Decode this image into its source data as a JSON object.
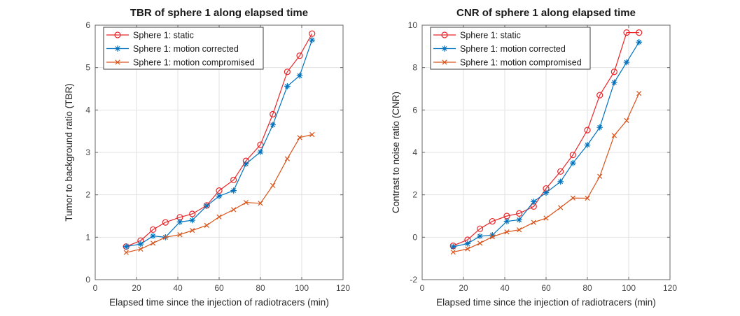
{
  "figure": {
    "background": "#ffffff",
    "axis_box_color": "#666666",
    "grid_color": "#e2e2e2",
    "tick_label_color": "#474747",
    "title_color": "#1a1a1a",
    "label_color": "#262626",
    "legend_border_color": "#3c3c3c",
    "legend_background": "#ffffff"
  },
  "chart_data": [
    {
      "id": "tbr",
      "type": "line",
      "title": "TBR of sphere 1 along elapsed time",
      "xlabel": "Elapsed time since the injection of radiotracers (min)",
      "ylabel": "Tumor to background ratio (TBR)",
      "xlim": [
        0,
        120
      ],
      "ylim": [
        0,
        6
      ],
      "xticks": [
        0,
        20,
        40,
        60,
        80,
        100,
        120
      ],
      "yticks": [
        0,
        1,
        2,
        3,
        4,
        5,
        6
      ],
      "grid": true,
      "legend_position": "top-left",
      "x": [
        15,
        22,
        28,
        34,
        41,
        47,
        54,
        60,
        67,
        73,
        80,
        86,
        93,
        99,
        105
      ],
      "series": [
        {
          "name": "Sphere 1: static",
          "color": "#e8262a",
          "marker": "circle",
          "values": [
            0.78,
            0.92,
            1.18,
            1.35,
            1.47,
            1.55,
            1.75,
            2.1,
            2.35,
            2.8,
            3.18,
            3.9,
            4.9,
            5.28,
            5.8
          ]
        },
        {
          "name": "Sphere 1: motion corrected",
          "color": "#0072bd",
          "marker": "asterisk",
          "values": [
            0.78,
            0.84,
            1.03,
            1.0,
            1.36,
            1.4,
            1.74,
            1.97,
            2.1,
            2.73,
            3.01,
            3.65,
            4.56,
            4.81,
            5.65
          ]
        },
        {
          "name": "Sphere 1: motion compromised",
          "color": "#d95319",
          "marker": "x",
          "values": [
            0.64,
            0.72,
            0.86,
            1.0,
            1.06,
            1.16,
            1.28,
            1.48,
            1.65,
            1.82,
            1.8,
            2.22,
            2.85,
            3.35,
            3.42
          ]
        }
      ]
    },
    {
      "id": "cnr",
      "type": "line",
      "title": "CNR of sphere 1 along elapsed time",
      "xlabel": "Elapsed time since the injection of radiotracers (min)",
      "ylabel": "Contrast to noise ratio (CNR)",
      "xlim": [
        0,
        120
      ],
      "ylim": [
        -2,
        10
      ],
      "xticks": [
        0,
        20,
        40,
        60,
        80,
        100,
        120
      ],
      "yticks": [
        -2,
        0,
        2,
        4,
        6,
        8,
        10
      ],
      "grid": true,
      "legend_position": "top-left",
      "x": [
        15,
        22,
        28,
        34,
        41,
        47,
        54,
        60,
        67,
        73,
        80,
        86,
        93,
        99,
        105
      ],
      "series": [
        {
          "name": "Sphere 1: static",
          "color": "#e8262a",
          "marker": "circle",
          "values": [
            -0.4,
            -0.12,
            0.4,
            0.75,
            1.0,
            1.12,
            1.45,
            2.3,
            3.1,
            3.88,
            5.05,
            6.7,
            7.8,
            9.65,
            9.65
          ]
        },
        {
          "name": "Sphere 1: motion corrected",
          "color": "#0072bd",
          "marker": "asterisk",
          "values": [
            -0.45,
            -0.3,
            0.05,
            0.1,
            0.75,
            0.82,
            1.68,
            2.1,
            2.62,
            3.5,
            4.35,
            5.18,
            7.3,
            8.25,
            9.2
          ]
        },
        {
          "name": "Sphere 1: motion compromised",
          "color": "#d95319",
          "marker": "x",
          "values": [
            -0.7,
            -0.55,
            -0.28,
            0.02,
            0.25,
            0.35,
            0.7,
            0.9,
            1.4,
            1.85,
            1.84,
            2.87,
            4.8,
            5.5,
            6.78
          ]
        }
      ]
    }
  ]
}
